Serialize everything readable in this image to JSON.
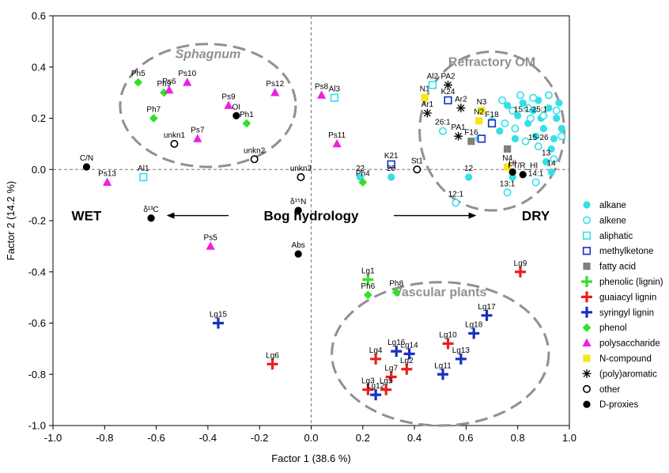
{
  "chart_data": {
    "type": "scatter",
    "xlabel": "Factor 1 (38.6 %)",
    "ylabel": "Factor 2 (14.2 %)",
    "xlim": [
      -1.0,
      1.0
    ],
    "ylim": [
      -1.0,
      0.6
    ],
    "x_ticks": [
      "-1.0",
      "-0.8",
      "-0.6",
      "-0.4",
      "-0.2",
      "0.0",
      "0.2",
      "0.4",
      "0.6",
      "0.8",
      "1.0"
    ],
    "y_ticks": [
      "0.6",
      "0.4",
      "0.2",
      "0.0",
      "-0.2",
      "-0.4",
      "-0.6",
      "-0.8",
      "-1.0"
    ],
    "legend_position": "right",
    "categories": [
      {
        "key": "alkane",
        "name": "alkane",
        "marker": "circle-filled",
        "color": "#33e0e8"
      },
      {
        "key": "alkene",
        "name": "alkene",
        "marker": "circle-open",
        "color": "#33e0e8"
      },
      {
        "key": "aliphatic",
        "name": "aliphatic",
        "marker": "square-open",
        "color": "#33e0e8"
      },
      {
        "key": "methylketone",
        "name": "methylketone",
        "marker": "square-open",
        "color": "#1a2ec0"
      },
      {
        "key": "fatty_acid",
        "name": "fatty acid",
        "marker": "square-filled",
        "color": "#808080"
      },
      {
        "key": "phenolic",
        "name": "phenolic (lignin)",
        "marker": "plus",
        "color": "#33e028"
      },
      {
        "key": "guaiacyl",
        "name": "guaiacyl lignin",
        "marker": "plus",
        "color": "#e82020"
      },
      {
        "key": "syringyl",
        "name": "syringyl lignin",
        "marker": "plus",
        "color": "#1a2ec0"
      },
      {
        "key": "phenol",
        "name": "phenol",
        "marker": "diamond",
        "color": "#33e028"
      },
      {
        "key": "polysaccharide",
        "name": "polysaccharide",
        "marker": "triangle",
        "color": "#f01ee0"
      },
      {
        "key": "ncompound",
        "name": "N-compound",
        "marker": "square-filled",
        "color": "#f5e61a"
      },
      {
        "key": "aromatic",
        "name": "(poly)aromatic",
        "marker": "asterisk",
        "color": "#000000"
      },
      {
        "key": "other",
        "name": "other",
        "marker": "circle-open",
        "color": "#000000"
      },
      {
        "key": "dproxy",
        "name": "D-proxies",
        "marker": "circle-filled",
        "color": "#000000"
      }
    ],
    "points": [
      {
        "cat": "alkane",
        "x": 0.65,
        "y": 0.12
      },
      {
        "cat": "alkane",
        "x": 0.7,
        "y": 0.19
      },
      {
        "cat": "alkane",
        "x": 0.73,
        "y": 0.15
      },
      {
        "cat": "alkane",
        "x": 0.76,
        "y": 0.25
      },
      {
        "cat": "alkane",
        "x": 0.79,
        "y": 0.12
      },
      {
        "cat": "alkane",
        "x": 0.8,
        "y": 0.21
      },
      {
        "cat": "alkane",
        "x": 0.82,
        "y": 0.26
      },
      {
        "cat": "alkane",
        "x": 0.84,
        "y": 0.18
      },
      {
        "cat": "alkane",
        "x": 0.86,
        "y": 0.23
      },
      {
        "cat": "alkane",
        "x": 0.87,
        "y": 0.13
      },
      {
        "cat": "alkane",
        "x": 0.88,
        "y": 0.27
      },
      {
        "cat": "alkane",
        "x": 0.89,
        "y": 0.2
      },
      {
        "cat": "alkane",
        "x": 0.9,
        "y": 0.16
      },
      {
        "cat": "alkane",
        "x": 0.92,
        "y": 0.24
      },
      {
        "cat": "alkane",
        "x": 0.93,
        "y": 0.08
      },
      {
        "cat": "alkane",
        "x": 0.95,
        "y": 0.2
      },
      {
        "cat": "alkane",
        "x": 0.96,
        "y": 0.26
      },
      {
        "cat": "alkane",
        "x": 0.97,
        "y": 0.16
      },
      {
        "cat": "alkane",
        "x": 0.94,
        "y": 0.12
      },
      {
        "cat": "alkane",
        "x": 0.91,
        "y": 0.03,
        "label": "13"
      },
      {
        "cat": "alkane",
        "x": 0.61,
        "y": -0.03,
        "label": "12"
      },
      {
        "cat": "alkane",
        "x": 0.31,
        "y": -0.03,
        "label": "20"
      },
      {
        "cat": "alkane",
        "x": 0.19,
        "y": -0.03,
        "label": "22"
      },
      {
        "cat": "alkane",
        "x": 0.78,
        "y": -0.03
      },
      {
        "cat": "alkane",
        "x": 0.93,
        "y": -0.01,
        "label": "14"
      },
      {
        "cat": "alkene",
        "x": 0.74,
        "y": 0.27
      },
      {
        "cat": "alkene",
        "x": 0.78,
        "y": 0.23
      },
      {
        "cat": "alkene",
        "x": 0.75,
        "y": 0.18
      },
      {
        "cat": "alkene",
        "x": 0.81,
        "y": 0.29
      },
      {
        "cat": "alkene",
        "x": 0.79,
        "y": 0.16
      },
      {
        "cat": "alkene",
        "x": 0.84,
        "y": 0.24
      },
      {
        "cat": "alkene",
        "x": 0.83,
        "y": 0.11
      },
      {
        "cat": "alkene",
        "x": 0.86,
        "y": 0.28
      },
      {
        "cat": "alkene",
        "x": 0.88,
        "y": 0.09,
        "label": "15-26"
      },
      {
        "cat": "alkene",
        "x": 0.9,
        "y": 0.21
      },
      {
        "cat": "alkene",
        "x": 0.92,
        "y": 0.29
      },
      {
        "cat": "alkene",
        "x": 0.95,
        "y": 0.23
      },
      {
        "cat": "alkene",
        "x": 0.97,
        "y": 0.13
      },
      {
        "cat": "alkene",
        "x": 0.94,
        "y": 0.04
      },
      {
        "cat": "alkene",
        "x": 0.85,
        "y": 0.2,
        "label": "15:1-25:1"
      },
      {
        "cat": "alkene",
        "x": 0.51,
        "y": 0.15,
        "label": "26:1"
      },
      {
        "cat": "alkene",
        "x": 0.76,
        "y": -0.09,
        "label": "13:1"
      },
      {
        "cat": "alkene",
        "x": 0.87,
        "y": -0.05,
        "label": "14:1"
      },
      {
        "cat": "alkene",
        "x": 0.56,
        "y": -0.13,
        "label": "12:1"
      },
      {
        "cat": "aliphatic",
        "x": 0.09,
        "y": 0.28,
        "label": "Al3"
      },
      {
        "cat": "aliphatic",
        "x": 0.47,
        "y": 0.33,
        "label": "Al2"
      },
      {
        "cat": "aliphatic",
        "x": -0.65,
        "y": -0.03,
        "label": "Al1"
      },
      {
        "cat": "methylketone",
        "x": 0.53,
        "y": 0.27,
        "label": "K24"
      },
      {
        "cat": "methylketone",
        "x": 0.31,
        "y": 0.02,
        "label": "K21"
      },
      {
        "cat": "methylketone",
        "x": 0.7,
        "y": 0.18,
        "label": "F18"
      },
      {
        "cat": "methylketone",
        "x": 0.66,
        "y": 0.12
      },
      {
        "cat": "fatty_acid",
        "x": 0.62,
        "y": 0.11,
        "label": "F16"
      },
      {
        "cat": "fatty_acid",
        "x": 0.76,
        "y": 0.08
      },
      {
        "cat": "phenolic",
        "x": 0.22,
        "y": -0.43,
        "label": "Lg1"
      },
      {
        "cat": "guaiacyl",
        "x": 0.81,
        "y": -0.4,
        "label": "Lg9"
      },
      {
        "cat": "guaiacyl",
        "x": -0.15,
        "y": -0.76,
        "label": "Lg6"
      },
      {
        "cat": "guaiacyl",
        "x": 0.25,
        "y": -0.74,
        "label": "Lg4"
      },
      {
        "cat": "guaiacyl",
        "x": 0.31,
        "y": -0.81,
        "label": "Lg7"
      },
      {
        "cat": "guaiacyl",
        "x": 0.37,
        "y": -0.78,
        "label": "Lg2"
      },
      {
        "cat": "guaiacyl",
        "x": 0.22,
        "y": -0.86,
        "label": "Lg3"
      },
      {
        "cat": "guaiacyl",
        "x": 0.29,
        "y": -0.86,
        "label": "Lg5"
      },
      {
        "cat": "guaiacyl",
        "x": 0.53,
        "y": -0.68,
        "label": "Lg10"
      },
      {
        "cat": "syringyl",
        "x": -0.36,
        "y": -0.6,
        "label": "Lg15"
      },
      {
        "cat": "syringyl",
        "x": 0.33,
        "y": -0.71,
        "label": "Lg16"
      },
      {
        "cat": "syringyl",
        "x": 0.38,
        "y": -0.72,
        "label": "Lg14"
      },
      {
        "cat": "syringyl",
        "x": 0.25,
        "y": -0.88,
        "label": "Lg12"
      },
      {
        "cat": "syringyl",
        "x": 0.51,
        "y": -0.8,
        "label": "Lg11"
      },
      {
        "cat": "syringyl",
        "x": 0.58,
        "y": -0.74,
        "label": "Lg13"
      },
      {
        "cat": "syringyl",
        "x": 0.63,
        "y": -0.64,
        "label": "Lg18"
      },
      {
        "cat": "syringyl",
        "x": 0.68,
        "y": -0.57,
        "label": "Lg17"
      },
      {
        "cat": "phenol",
        "x": -0.67,
        "y": 0.34,
        "label": "Ph5"
      },
      {
        "cat": "phenol",
        "x": -0.57,
        "y": 0.3,
        "label": "Ph9"
      },
      {
        "cat": "phenol",
        "x": -0.61,
        "y": 0.2,
        "label": "Ph7"
      },
      {
        "cat": "phenol",
        "x": -0.25,
        "y": 0.18,
        "label": "Ph1"
      },
      {
        "cat": "phenol",
        "x": 0.2,
        "y": -0.05,
        "label": "Ph4"
      },
      {
        "cat": "phenol",
        "x": 0.22,
        "y": -0.49,
        "label": "Ph6"
      },
      {
        "cat": "phenol",
        "x": 0.33,
        "y": -0.48,
        "label": "Ph8"
      },
      {
        "cat": "polysaccharide",
        "x": -0.55,
        "y": 0.31,
        "label": "Ps6"
      },
      {
        "cat": "polysaccharide",
        "x": -0.48,
        "y": 0.34,
        "label": "Ps10"
      },
      {
        "cat": "polysaccharide",
        "x": -0.32,
        "y": 0.25,
        "label": "Ps9"
      },
      {
        "cat": "polysaccharide",
        "x": -0.14,
        "y": 0.3,
        "label": "Ps12"
      },
      {
        "cat": "polysaccharide",
        "x": 0.04,
        "y": 0.29,
        "label": "Ps8"
      },
      {
        "cat": "polysaccharide",
        "x": 0.1,
        "y": 0.1,
        "label": "Ps11"
      },
      {
        "cat": "polysaccharide",
        "x": -0.44,
        "y": 0.12,
        "label": "Ps7"
      },
      {
        "cat": "polysaccharide",
        "x": -0.79,
        "y": -0.05,
        "label": "Ps13"
      },
      {
        "cat": "polysaccharide",
        "x": -0.39,
        "y": -0.3,
        "label": "Ps5"
      },
      {
        "cat": "ncompound",
        "x": 0.44,
        "y": 0.28,
        "label": "N1"
      },
      {
        "cat": "ncompound",
        "x": 0.66,
        "y": 0.23,
        "label": "N3"
      },
      {
        "cat": "ncompound",
        "x": 0.65,
        "y": 0.19,
        "label": "N2"
      },
      {
        "cat": "ncompound",
        "x": 0.76,
        "y": 0.01,
        "label": "N4"
      },
      {
        "cat": "aromatic",
        "x": 0.53,
        "y": 0.33,
        "label": "PA2"
      },
      {
        "cat": "aromatic",
        "x": 0.45,
        "y": 0.22,
        "label": "Ar1"
      },
      {
        "cat": "aromatic",
        "x": 0.58,
        "y": 0.24,
        "label": "Ar2"
      },
      {
        "cat": "aromatic",
        "x": 0.57,
        "y": 0.13,
        "label": "PA1"
      },
      {
        "cat": "other",
        "x": -0.53,
        "y": 0.1,
        "label": "unkn1"
      },
      {
        "cat": "other",
        "x": -0.22,
        "y": 0.04,
        "label": "unkn2"
      },
      {
        "cat": "other",
        "x": -0.04,
        "y": -0.03,
        "label": "unkn3"
      },
      {
        "cat": "other",
        "x": 0.41,
        "y": 0.0,
        "label": "St1"
      },
      {
        "cat": "dproxy",
        "x": -0.87,
        "y": 0.01,
        "label": "C/N"
      },
      {
        "cat": "dproxy",
        "x": -0.29,
        "y": 0.21,
        "label": "OI"
      },
      {
        "cat": "dproxy",
        "x": -0.62,
        "y": -0.19,
        "label": "δ¹³C"
      },
      {
        "cat": "dproxy",
        "x": -0.05,
        "y": -0.16,
        "label": "δ¹⁵N"
      },
      {
        "cat": "dproxy",
        "x": -0.05,
        "y": -0.33,
        "label": "Abs"
      },
      {
        "cat": "dproxy",
        "x": 0.78,
        "y": -0.01,
        "label": "HI"
      },
      {
        "cat": "dproxy",
        "x": 0.82,
        "y": -0.02,
        "label": "FT/R_HI"
      }
    ],
    "regions": [
      {
        "name": "Sphagnum",
        "cx": -0.4,
        "cy": 0.25,
        "rx": 0.34,
        "ry": 0.24
      },
      {
        "name": "Refractory OM",
        "cx": 0.7,
        "cy": 0.15,
        "rx": 0.28,
        "ry": 0.31
      },
      {
        "name": "Vascular plants",
        "cx": 0.5,
        "cy": -0.72,
        "rx": 0.42,
        "ry": 0.28
      }
    ],
    "annotations": {
      "wet": "WET",
      "dry": "DRY",
      "gradient": "Bog hydrology"
    }
  }
}
